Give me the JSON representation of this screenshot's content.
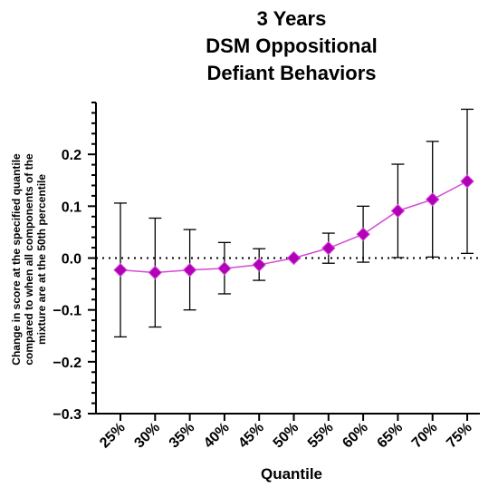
{
  "chart_data": {
    "type": "line",
    "title": [
      "3 Years",
      "DSM Oppositional",
      "Defiant Behaviors"
    ],
    "xlabel": "Quantile",
    "ylabel": [
      "Change in score at the specified quantile",
      "compared to when all components of the",
      "mixture are at the 50th percentile"
    ],
    "categories": [
      "25%",
      "30%",
      "35%",
      "40%",
      "45%",
      "50%",
      "55%",
      "60%",
      "65%",
      "70%",
      "75%"
    ],
    "values": [
      -0.023,
      -0.028,
      -0.023,
      -0.02,
      -0.013,
      0.0,
      0.019,
      0.046,
      0.091,
      0.113,
      0.148
    ],
    "ci_lower": [
      -0.152,
      -0.133,
      -0.1,
      -0.069,
      -0.043,
      0.0,
      -0.01,
      -0.008,
      0.001,
      0.002,
      0.009
    ],
    "ci_upper": [
      0.106,
      0.077,
      0.055,
      0.03,
      0.018,
      0.0,
      0.048,
      0.1,
      0.181,
      0.225,
      0.287
    ],
    "ylim": [
      -0.3,
      0.3
    ],
    "yticks": [
      -0.3,
      -0.2,
      -0.1,
      0.0,
      0.1,
      0.2
    ],
    "ytick_labels": [
      "−0.3",
      "−0.2",
      "−0.1",
      "0.0",
      "0.1",
      "0.2"
    ],
    "reference_line": 0,
    "colors": {
      "line": "#d44ad4",
      "marker": "#b000b8",
      "error_bar": "#000000"
    },
    "marker": "diamond",
    "grid": false
  }
}
